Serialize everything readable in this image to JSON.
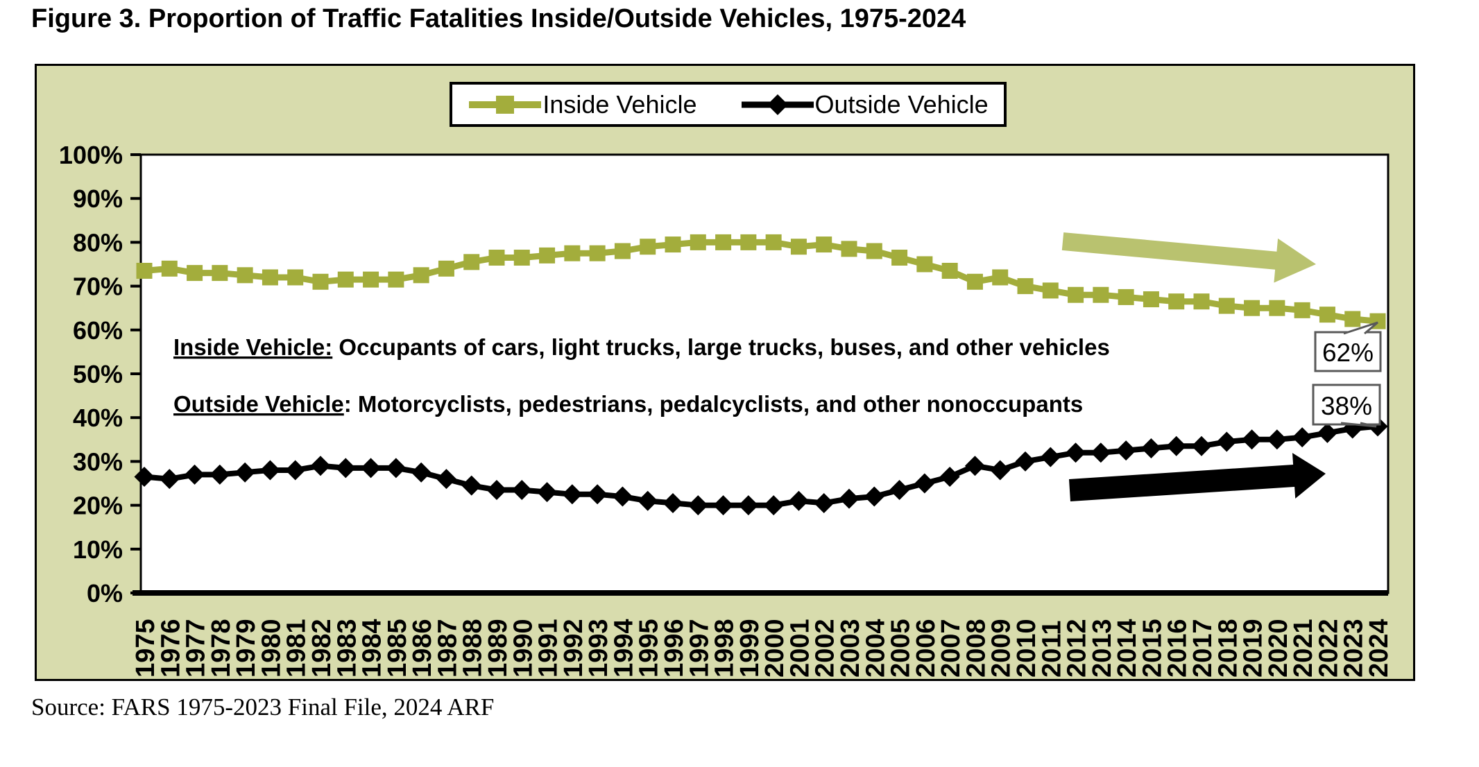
{
  "title": "Figure 3. Proportion of Traffic Fatalities Inside/Outside Vehicles, 1975-2024",
  "source": "Source: FARS 1975-2023 Final File, 2024 ARF",
  "legend": {
    "inside_label": "Inside Vehicle",
    "outside_label": "Outside Vehicle"
  },
  "annotations": {
    "inside_term": "Inside Vehicle:",
    "inside_rest": " Occupants of cars, light trucks, large trucks, buses, and other vehicles",
    "outside_term": "Outside Vehicle",
    "outside_rest": ": Motorcyclists, pedestrians, pedalcyclists, and other nonoccupants"
  },
  "callouts": {
    "inside_value_label": "62%",
    "outside_value_label": "38%"
  },
  "colors": {
    "inside_series": "#a3ad3c",
    "inside_arrow": "#b9c26f",
    "outside_series": "#000000",
    "chart_background": "#d8dcad",
    "plot_background": "#ffffff",
    "callout_border": "#595959",
    "text": "#000000"
  },
  "chart_data": {
    "type": "line",
    "title": "Figure 3. Proportion of Traffic Fatalities Inside/Outside Vehicles, 1975-2024",
    "x": [
      1975,
      1976,
      1977,
      1978,
      1979,
      1980,
      1981,
      1982,
      1983,
      1984,
      1985,
      1986,
      1987,
      1988,
      1989,
      1990,
      1991,
      1992,
      1993,
      1994,
      1995,
      1996,
      1997,
      1998,
      1999,
      2000,
      2001,
      2002,
      2003,
      2004,
      2005,
      2006,
      2007,
      2008,
      2009,
      2010,
      2011,
      2012,
      2013,
      2014,
      2015,
      2016,
      2017,
      2018,
      2019,
      2020,
      2021,
      2022,
      2023,
      2024
    ],
    "series": [
      {
        "name": "Inside Vehicle",
        "marker": "square",
        "color": "#a3ad3c",
        "values": [
          73.5,
          74,
          73,
          73,
          72.5,
          72,
          72,
          71,
          71.5,
          71.5,
          71.5,
          72.5,
          74,
          75.5,
          76.5,
          76.5,
          77,
          77.5,
          77.5,
          78,
          79,
          79.5,
          80,
          80,
          80,
          80,
          79,
          79.5,
          78.5,
          78,
          76.5,
          75,
          73.5,
          71,
          72,
          70,
          69,
          68,
          68,
          67.5,
          67,
          66.5,
          66.5,
          65.5,
          65,
          65,
          64.5,
          63.5,
          62.5,
          62
        ]
      },
      {
        "name": "Outside Vehicle",
        "marker": "diamond",
        "color": "#000000",
        "values": [
          26.5,
          26,
          27,
          27,
          27.5,
          28,
          28,
          29,
          28.5,
          28.5,
          28.5,
          27.5,
          26,
          24.5,
          23.5,
          23.5,
          23,
          22.5,
          22.5,
          22,
          21,
          20.5,
          20,
          20,
          20,
          20,
          21,
          20.5,
          21.5,
          22,
          23.5,
          25,
          26.5,
          29,
          28,
          30,
          31,
          32,
          32,
          32.5,
          33,
          33.5,
          33.5,
          34.5,
          35,
          35,
          35.5,
          36.5,
          37.5,
          38
        ]
      }
    ],
    "ylabel_format": "percent",
    "yticks": [
      0,
      10,
      20,
      30,
      40,
      50,
      60,
      70,
      80,
      90,
      100
    ],
    "ylim": [
      0,
      100
    ],
    "grid": false,
    "legend_position": "top-center",
    "end_labels": {
      "inside": "62%",
      "outside": "38%"
    }
  }
}
